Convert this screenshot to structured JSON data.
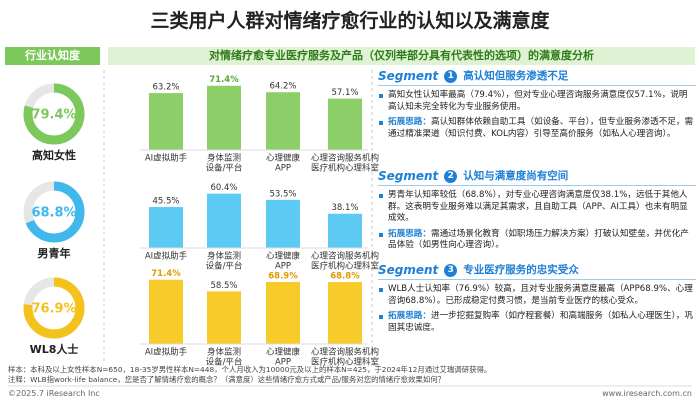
{
  "title": "三类用户人群对情绪疗愈行业的认知以及满意度",
  "left_header": "行业认知度",
  "middle_header": "对情绪疗愈专业医疗服务及产品（仅列举部分具有代表性的选项）的满意度分析",
  "chart_data": [
    {
      "type": "donut",
      "title": "高知女性",
      "values": [
        79.4
      ],
      "value_labels": [
        "79.4%"
      ],
      "color": "#7cc85a"
    },
    {
      "type": "bar",
      "categories": [
        [
          "AI虚拟助手"
        ],
        [
          "身体监测",
          "设备/平台"
        ],
        [
          "心理健康",
          "APP"
        ],
        [
          "心理咨询服务机构",
          "医疗机构心理科室"
        ]
      ],
      "values": [
        63.2,
        71.4,
        64.2,
        57.1
      ],
      "value_labels": [
        "63.2%",
        "71.4%",
        "64.2%",
        "57.1%"
      ],
      "color": "#8ccf68",
      "highlight": [
        false,
        true,
        false,
        false
      ],
      "highlight_color": "#5aa83a"
    },
    {
      "type": "donut",
      "title": "男青年",
      "values": [
        68.8
      ],
      "value_labels": [
        "68.8%"
      ],
      "color": "#3fb8ec"
    },
    {
      "type": "bar",
      "categories": [
        [
          "AI虚拟助手"
        ],
        [
          "身体监测",
          "设备/平台"
        ],
        [
          "心理健康",
          "APP"
        ],
        [
          "心理咨询服务机构",
          "医疗机构心理科室"
        ]
      ],
      "values": [
        45.5,
        60.4,
        53.5,
        38.1
      ],
      "value_labels": [
        "45.5%",
        "60.4%",
        "53.5%",
        "38.1%"
      ],
      "color": "#5ccaf2",
      "highlight": [
        false,
        false,
        false,
        false
      ],
      "highlight_color": "#1e9fd8"
    },
    {
      "type": "donut",
      "title": "WL8人士",
      "values": [
        76.9
      ],
      "value_labels": [
        "76.9%"
      ],
      "color": "#f3c21b"
    },
    {
      "type": "bar",
      "categories": [
        [
          "AI虚拟助手"
        ],
        [
          "身体监测",
          "设备/平台"
        ],
        [
          "心理健康",
          "APP"
        ],
        [
          "心理咨询服务机构",
          "医疗机构心理科室"
        ]
      ],
      "values": [
        71.4,
        58.5,
        68.9,
        68.8
      ],
      "value_labels": [
        "71.4%",
        "58.5%",
        "68.9%",
        "68.8%"
      ],
      "color": "#f7cb2a",
      "highlight": [
        true,
        false,
        true,
        true
      ],
      "highlight_color": "#e09a00"
    }
  ],
  "segments": [
    {
      "label": "Segment",
      "number": "1",
      "heading": "高认知但服务渗透不足",
      "bullets": [
        {
          "text": "高知女性认知率最高（79.4%），但对专业心理咨询服务满意度仅57.1%，说明高认知未完全转化为专业服务使用。"
        },
        {
          "tag": "拓展思路：",
          "text": "高认知群体依赖自助工具（如设备、平台），但专业服务渗透不足，需通过精准渠道（知识付费、KOL内容）引导至高价服务（如私人心理咨询）。"
        }
      ]
    },
    {
      "label": "Segment",
      "number": "2",
      "heading": "认知与满意度尚有空间",
      "bullets": [
        {
          "text": "男青年认知率较低（68.8%），对专业心理咨询满意度仅38.1%，远低于其他人群。这表明专业服务难以满足其需求，且自助工具（APP、AI工具）也未有明显成效。"
        },
        {
          "tag": "拓展思路：",
          "text": "需通过场景化教育（如职场压力解决方案）打破认知壁垒，并优化产品体验（如男性向心理咨询）。"
        }
      ]
    },
    {
      "label": "Segment",
      "number": "3",
      "heading": "专业医疗服务的忠实受众",
      "bullets": [
        {
          "text": "WLB人士认知率（76.9%）较高，且对专业服务满意度最高（APP68.9%、心理咨询68.8%）。已形成稳定付费习惯，是当前专业医疗的核心受众。"
        },
        {
          "tag": "拓展思路：",
          "text": "进一步挖掘复购率（如疗程套餐）和高端服务（如私人心理医生），巩固其忠诚度。"
        }
      ]
    }
  ],
  "notes": [
    "样本：本科及以上女性样本N=650，18-35岁男性样本N=448，个人月收入为10000元及以上的样本N=425，于2024年12月通过艾瑞调研获得。",
    "注释：WLB指work-life balance，您是否了解情绪疗愈的概念？（满意度）这些情绪疗愈方式或产品/服务对您的情绪疗愈效果如何？"
  ],
  "footer_left": "©2025.7 iResearch Inc",
  "footer_right": "www.iresearch.com.cn"
}
